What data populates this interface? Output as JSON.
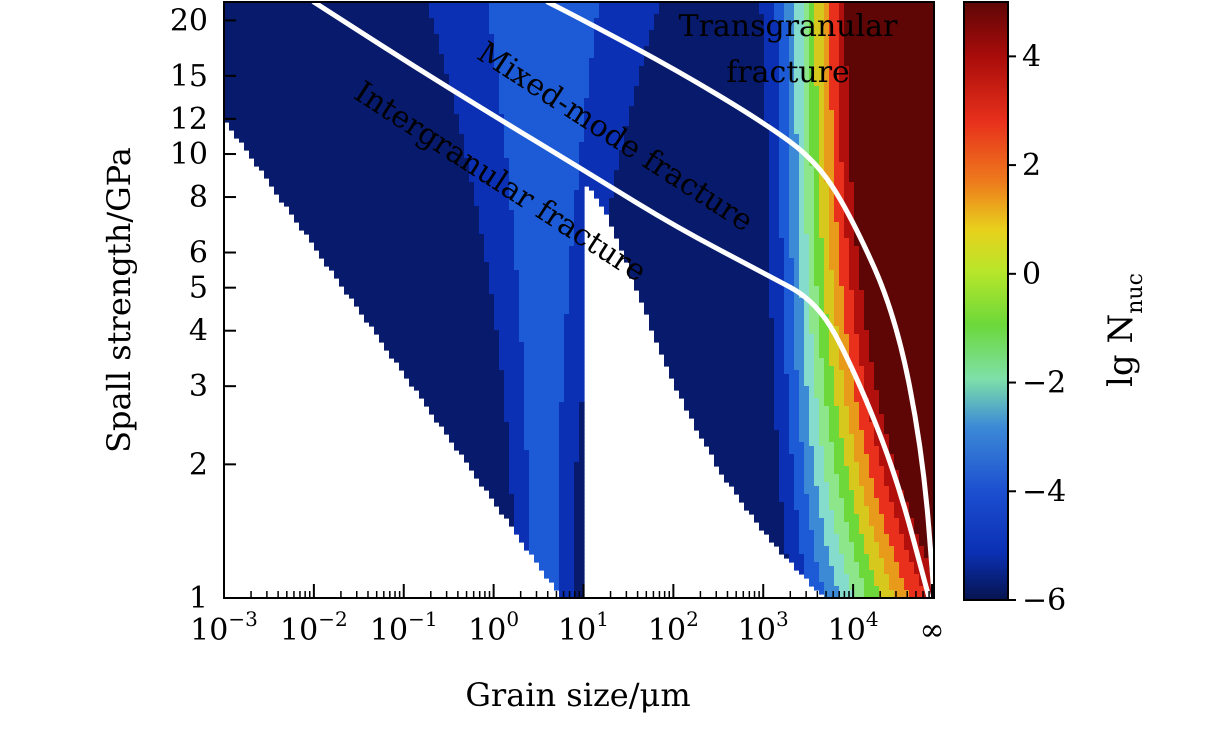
{
  "chart_data": {
    "type": "heatmap",
    "title": "",
    "xlabel": "Grain size/μm",
    "ylabel": "Spall strength/GPa",
    "x_scale": "log",
    "y_scale": "log",
    "xlim": [
      0.001,
      100000
    ],
    "ylim": [
      1,
      22
    ],
    "x_ticks": [
      {
        "value": 0.001,
        "base": "10",
        "exp": "−3"
      },
      {
        "value": 0.01,
        "base": "10",
        "exp": "−2"
      },
      {
        "value": 0.1,
        "base": "10",
        "exp": "−1"
      },
      {
        "value": 1,
        "base": "10",
        "exp": "0"
      },
      {
        "value": 10,
        "base": "10",
        "exp": "1"
      },
      {
        "value": 100,
        "base": "10",
        "exp": "2"
      },
      {
        "value": 1000,
        "base": "10",
        "exp": "3"
      },
      {
        "value": 10000,
        "base": "10",
        "exp": "4"
      },
      {
        "value": "infinity",
        "base": "∞",
        "exp": ""
      }
    ],
    "y_ticks": [
      1,
      2,
      3,
      4,
      5,
      6,
      8,
      10,
      12,
      15,
      20
    ],
    "colorbar": {
      "label": "lg N",
      "label_subscript": "nuc",
      "range": [
        -6,
        5
      ],
      "ticks": [
        "4",
        "2",
        "0",
        "−2",
        "−4",
        "−6"
      ],
      "tick_values": [
        4,
        2,
        0,
        -2,
        -4,
        -6
      ],
      "colormap": "jet"
    },
    "levels": [
      -6,
      -5,
      -4,
      -3,
      -2,
      -1,
      0,
      1,
      2,
      3,
      4,
      5
    ],
    "level_colors": [
      "#071a6b",
      "#0b30b4",
      "#1c5ad6",
      "#3c8ad6",
      "#86dccc",
      "#8ee68a",
      "#6cd83a",
      "#d6c81c",
      "#e89a1a",
      "#e8301c",
      "#b2100c",
      "#5e0606"
    ],
    "boundaries": [
      {
        "name": "intergranular-to-mixed",
        "points": [
          [
            0.01,
            22
          ],
          [
            0.1,
            16.3
          ],
          [
            1,
            12.2
          ],
          [
            10,
            9.2
          ],
          [
            100,
            6.9
          ],
          [
            1000,
            5.4
          ],
          [
            4000,
            4.65
          ],
          [
            10000,
            3.3
          ],
          [
            30000,
            1.9
          ],
          [
            70000,
            1.0
          ]
        ]
      },
      {
        "name": "mixed-to-transgranular",
        "points": [
          [
            4,
            22
          ],
          [
            10,
            20
          ],
          [
            100,
            15.6
          ],
          [
            1000,
            11.8
          ],
          [
            4000,
            9.6
          ],
          [
            10000,
            7.1
          ],
          [
            30000,
            4.3
          ],
          [
            60000,
            2.1
          ],
          [
            80000,
            1.0
          ]
        ]
      }
    ],
    "annotations": [
      {
        "text": "Transgranular",
        "region": "transgranular"
      },
      {
        "text": "fracture",
        "region": "transgranular"
      },
      {
        "text": "Mixed-mode fracture",
        "region": "mixed-mode"
      },
      {
        "text": "Intergranular fracture",
        "region": "intergranular"
      }
    ]
  }
}
